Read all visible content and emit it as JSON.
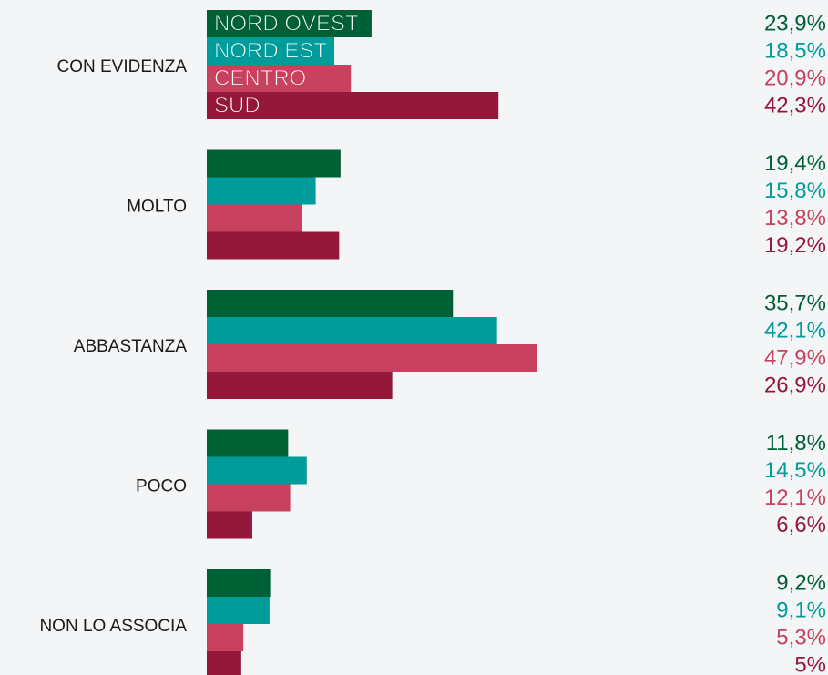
{
  "chart_data": {
    "type": "bar",
    "orientation": "horizontal",
    "categories": [
      "CON EVIDENZA",
      "MOLTO",
      "ABBASTANZA",
      "POCO",
      "NON LO ASSOCIA"
    ],
    "series": [
      {
        "name": "NORD OVEST",
        "color": "#006035",
        "values": [
          23.9,
          19.4,
          35.7,
          11.8,
          9.2
        ],
        "value_labels": [
          "23,9%",
          "19,4%",
          "35,7%",
          "11,8%",
          "9,2%"
        ]
      },
      {
        "name": "NORD EST",
        "color": "#009b9b",
        "values": [
          18.5,
          15.8,
          42.1,
          14.5,
          9.1
        ],
        "value_labels": [
          "18,5%",
          "15,8%",
          "42,1%",
          "14,5%",
          "9,1%"
        ]
      },
      {
        "name": "CENTRO",
        "color": "#c8415e",
        "values": [
          20.9,
          13.8,
          47.9,
          12.1,
          5.3
        ],
        "value_labels": [
          "20,9%",
          "13,8%",
          "47,9%",
          "12,1%",
          "5,3%"
        ]
      },
      {
        "name": "SUD",
        "color": "#951739",
        "values": [
          42.3,
          19.2,
          26.9,
          6.6,
          5
        ],
        "value_labels": [
          "42,3%",
          "19,2%",
          "26,9%",
          "6,6%",
          "5%"
        ]
      }
    ]
  }
}
